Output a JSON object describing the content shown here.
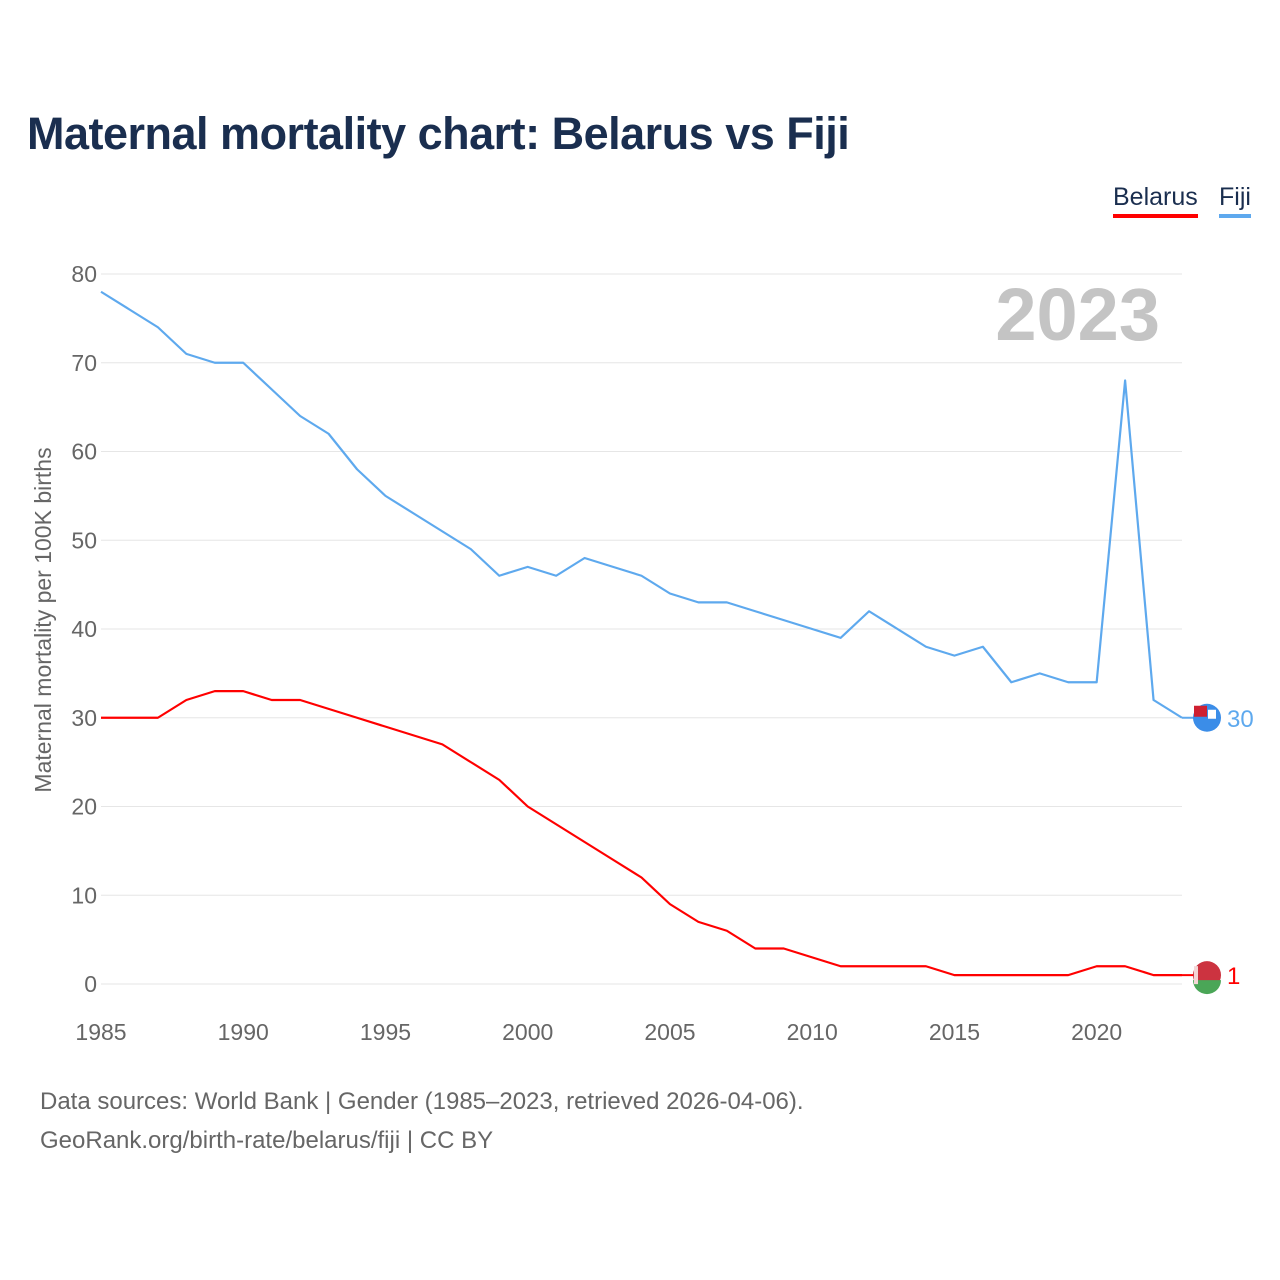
{
  "title": "Maternal mortality chart: Belarus vs Fiji",
  "source_line1": "Data sources: World Bank | Gender (1985–2023, retrieved 2026-04-06).",
  "source_line2": "GeoRank.org/birth-rate/belarus/fiji | CC BY",
  "chart_data": {
    "type": "line",
    "title": "Maternal mortality chart: Belarus vs Fiji",
    "xlabel": "",
    "ylabel": "Maternal mortality per 100K births",
    "year_label": "2023",
    "xlim": [
      1985,
      2023
    ],
    "ylim": [
      0,
      80
    ],
    "xticks": [
      1985,
      1990,
      1995,
      2000,
      2005,
      2010,
      2015,
      2020
    ],
    "yticks": [
      0,
      10,
      20,
      30,
      40,
      50,
      60,
      70,
      80
    ],
    "grid": true,
    "legend_position": "top-right",
    "x": [
      1985,
      1986,
      1987,
      1988,
      1989,
      1990,
      1991,
      1992,
      1993,
      1994,
      1995,
      1996,
      1997,
      1998,
      1999,
      2000,
      2001,
      2002,
      2003,
      2004,
      2005,
      2006,
      2007,
      2008,
      2009,
      2010,
      2011,
      2012,
      2013,
      2014,
      2015,
      2016,
      2017,
      2018,
      2019,
      2020,
      2021,
      2022,
      2023
    ],
    "series": [
      {
        "name": "Belarus",
        "color": "#ff0000",
        "end_label": "1",
        "values": [
          30,
          30,
          30,
          32,
          33,
          33,
          32,
          32,
          31,
          30,
          29,
          28,
          27,
          25,
          23,
          20,
          18,
          16,
          14,
          12,
          9,
          7,
          6,
          4,
          4,
          3,
          2,
          2,
          2,
          2,
          1,
          1,
          1,
          1,
          1,
          2,
          2,
          1,
          1
        ]
      },
      {
        "name": "Fiji",
        "color": "#5ea9ee",
        "end_label": "30",
        "values": [
          78,
          76,
          74,
          71,
          70,
          70,
          67,
          64,
          62,
          58,
          55,
          53,
          51,
          49,
          46,
          47,
          46,
          48,
          47,
          46,
          44,
          43,
          43,
          42,
          41,
          40,
          39,
          42,
          40,
          38,
          37,
          38,
          34,
          35,
          34,
          34,
          68,
          32,
          30
        ]
      }
    ]
  }
}
